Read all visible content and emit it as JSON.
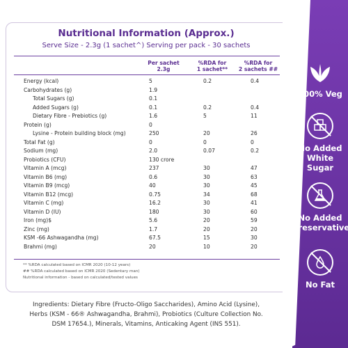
{
  "header": {
    "title": "Nutritional Information (Approx.)",
    "subtitle": "Serve Size - 2.3g (1 sachet^) Serving per pack - 30 sachets"
  },
  "table": {
    "columns": [
      "Per sachet\n2.3g",
      "%RDA for\n1 sachet**",
      "%RDA for\n2 sachets ##"
    ],
    "col1": [
      "Per sachet",
      "2.3g"
    ],
    "col2": [
      "%RDA for",
      "1 sachet**"
    ],
    "col3": [
      "%RDA for",
      "2 sachets ##"
    ],
    "rows": [
      {
        "name": "Energy (kcal)",
        "v1": "5",
        "v2": "0.2",
        "v3": "0.4"
      },
      {
        "name": "Carbohydrates (g)",
        "v1": "1.9",
        "v2": "",
        "v3": ""
      },
      {
        "name": "Total Sugars (g)",
        "v1": "0.1",
        "v2": "",
        "v3": ""
      },
      {
        "name": "Added Sugars (g)",
        "v1": "0.1",
        "v2": "0.2",
        "v3": "0.4"
      },
      {
        "name": "Dietary Fibre - Prebiotics (g)",
        "v1": "1.6",
        "v2": "5",
        "v3": "11"
      },
      {
        "name": "Protein (g)",
        "v1": "0",
        "v2": "",
        "v3": ""
      },
      {
        "name": "Lysine - Protein building block  (mg)",
        "v1": "250",
        "v2": "20",
        "v3": "26"
      },
      {
        "name": "Total Fat (g)",
        "v1": "0",
        "v2": "0",
        "v3": "0"
      },
      {
        "name": "Sodium (mg)",
        "v1": "2.0",
        "v2": "0.07",
        "v3": "0.2"
      },
      {
        "name": "Probiotics (CFU)",
        "v1": "130 crore",
        "v2": "",
        "v3": ""
      },
      {
        "name": "Vitamin A (mcg)",
        "v1": "237",
        "v2": "30",
        "v3": "47"
      },
      {
        "name": "Vitamin B6 (mg)",
        "v1": "0.6",
        "v2": "30",
        "v3": "63"
      },
      {
        "name": "Vitamin B9 (mcg)",
        "v1": "40",
        "v2": "30",
        "v3": "45"
      },
      {
        "name": "Vitamin B12 (mcg)",
        "v1": "0.75",
        "v2": "34",
        "v3": "68"
      },
      {
        "name": "Vitamin C (mg)",
        "v1": "16.2",
        "v2": "30",
        "v3": "41"
      },
      {
        "name": "Vitamin D (IU)",
        "v1": "180",
        "v2": "30",
        "v3": "60"
      },
      {
        "name": "Iron (mg)$",
        "v1": "5.6",
        "v2": "20",
        "v3": "59"
      },
      {
        "name": "Zinc (mg)",
        "v1": "1.7",
        "v2": "20",
        "v3": "20"
      },
      {
        "name": "KSM -66 Ashwagandha (mg)",
        "v1": "67.5",
        "v2": "15",
        "v3": "30"
      },
      {
        "name": "Brahmi (mg)",
        "v1": "20",
        "v2": "10",
        "v3": "20"
      }
    ]
  },
  "footnotes": [
    "** %RDA calculated based on ICMR 2020 (10-12 years)",
    "## %RDA calculated based on ICMR 2020 (Sedentary man)",
    "Nutritional information - based on calculated/tested values"
  ],
  "ingredients": {
    "line1": "Ingredients: Dietary Fibre (Fructo-Oligo Saccharides), Amino Acid (Lysine),",
    "line2": "Herbs (KSM - 66® Ashwagandha, Brahmi), Probiotics (Culture Collection No.",
    "line3": "DSM 17654.), Minerals, Vitamins, Anticaking Agent (INS 551)."
  },
  "badges": [
    {
      "label1": "100% Veg",
      "label2": "",
      "icon": "leaf-icon"
    },
    {
      "label1": "No Added",
      "label2": "White Sugar",
      "icon": "sugar-cube-icon"
    },
    {
      "label1": "No Added",
      "label2": "Preservatives",
      "icon": "flask-icon"
    },
    {
      "label1": "No Fat",
      "label2": "",
      "icon": "drop-icon"
    }
  ],
  "colors": {
    "accent": "#5a2d91",
    "sidebar": "#6a33a4"
  }
}
